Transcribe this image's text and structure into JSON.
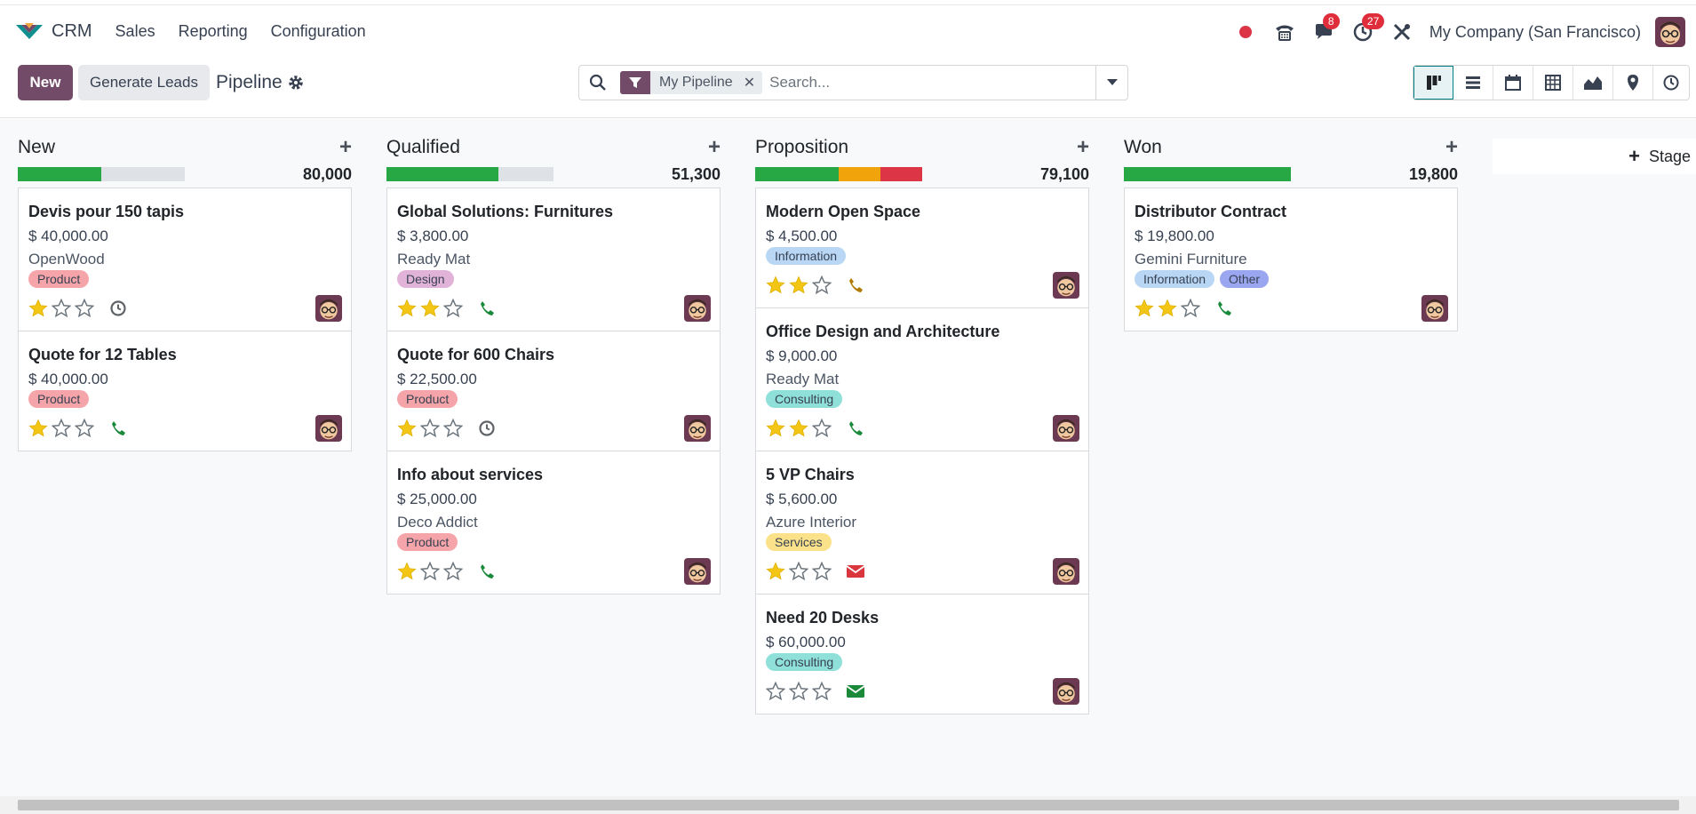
{
  "navbar": {
    "app_name": "CRM",
    "menu": [
      "Sales",
      "Reporting",
      "Configuration"
    ],
    "messages_count": "8",
    "activities_count": "27",
    "company": "My Company (San Francisco)"
  },
  "control": {
    "new_label": "New",
    "generate_label": "Generate Leads",
    "breadcrumb": "Pipeline",
    "search": {
      "facet": "My Pipeline",
      "placeholder": "Search..."
    },
    "views": [
      "kanban-icon",
      "list-icon",
      "calendar-icon",
      "pivot-icon",
      "graph-icon",
      "map-icon",
      "activity-icon"
    ]
  },
  "colors": {
    "brand": "#714b67",
    "green": "#28a745",
    "orange": "#f0a30a",
    "red": "#dc3545",
    "teal": "#017e84"
  },
  "columns": [
    {
      "title": "New",
      "total": "80,000",
      "progress": [
        {
          "color": "#28a745",
          "fraction": 0.5
        }
      ],
      "cards": [
        {
          "title": "Devis pour 150 tapis",
          "revenue": "$ 40,000.00",
          "partner": "OpenWood",
          "tags": [
            {
              "label": "Product",
              "color": "#f5a5a9"
            }
          ],
          "stars": 1,
          "activity": "clock-icon"
        },
        {
          "title": "Quote for 12 Tables",
          "revenue": "$ 40,000.00",
          "partner": "",
          "tags": [
            {
              "label": "Product",
              "color": "#f5a5a9"
            }
          ],
          "stars": 1,
          "activity": "phone-icon"
        }
      ]
    },
    {
      "title": "Qualified",
      "total": "51,300",
      "progress": [
        {
          "color": "#28a745",
          "fraction": 0.67
        }
      ],
      "cards": [
        {
          "title": "Global Solutions: Furnitures",
          "revenue": "$ 3,800.00",
          "partner": "Ready Mat",
          "tags": [
            {
              "label": "Design",
              "color": "#e2b3d9"
            }
          ],
          "stars": 2,
          "activity": "phone-icon"
        },
        {
          "title": "Quote for 600 Chairs",
          "revenue": "$ 22,500.00",
          "partner": "",
          "tags": [
            {
              "label": "Product",
              "color": "#f5a5a9"
            }
          ],
          "stars": 1,
          "activity": "clock-icon"
        },
        {
          "title": "Info about services",
          "revenue": "$ 25,000.00",
          "partner": "Deco Addict",
          "tags": [
            {
              "label": "Product",
              "color": "#f5a5a9"
            }
          ],
          "stars": 1,
          "activity": "phone-icon"
        }
      ]
    },
    {
      "title": "Proposition",
      "total": "79,100",
      "progress": [
        {
          "color": "#28a745",
          "fraction": 0.5
        },
        {
          "color": "#f0a30a",
          "fraction": 0.25
        },
        {
          "color": "#dc3545",
          "fraction": 0.25
        }
      ],
      "cards": [
        {
          "title": "Modern Open Space",
          "revenue": "$ 4,500.00",
          "partner": "",
          "tags": [
            {
              "label": "Information",
              "color": "#b9d7f5"
            }
          ],
          "stars": 2,
          "activity": "phone-warning-icon"
        },
        {
          "title": "Office Design and Architecture",
          "revenue": "$ 9,000.00",
          "partner": "Ready Mat",
          "tags": [
            {
              "label": "Consulting",
              "color": "#8fe0d8"
            }
          ],
          "stars": 2,
          "activity": "phone-icon"
        },
        {
          "title": "5 VP Chairs",
          "revenue": "$ 5,600.00",
          "partner": "Azure Interior",
          "tags": [
            {
              "label": "Services",
              "color": "#fbe28a"
            }
          ],
          "stars": 1,
          "activity": "email-overdue-icon"
        },
        {
          "title": "Need 20 Desks",
          "revenue": "$ 60,000.00",
          "partner": "",
          "tags": [
            {
              "label": "Consulting",
              "color": "#8fe0d8"
            }
          ],
          "stars": 0,
          "activity": "email-icon"
        }
      ]
    },
    {
      "title": "Won",
      "total": "19,800",
      "progress": [
        {
          "color": "#28a745",
          "fraction": 1.0
        }
      ],
      "cards": [
        {
          "title": "Distributor Contract",
          "revenue": "$ 19,800.00",
          "partner": "Gemini Furniture",
          "tags": [
            {
              "label": "Information",
              "color": "#b9d7f5"
            },
            {
              "label": "Other",
              "color": "#9aa6f0"
            }
          ],
          "stars": 2,
          "activity": "phone-icon"
        }
      ]
    }
  ],
  "stage_add_label": "Stage"
}
